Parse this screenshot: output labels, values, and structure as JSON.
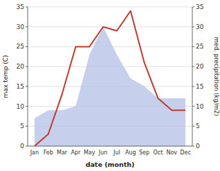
{
  "chart_data": {
    "type": "line",
    "categories": [
      "Jan",
      "Feb",
      "Mar",
      "Apr",
      "May",
      "Jun",
      "Jul",
      "Aug",
      "Sep",
      "Oct",
      "Nov",
      "Dec"
    ],
    "series": [
      {
        "type": "area",
        "axis": "y2",
        "color": "#b8c4e8",
        "values": [
          7,
          9,
          9,
          10,
          23,
          30,
          23,
          17,
          15,
          12,
          12,
          12
        ]
      },
      {
        "type": "line",
        "color": "#c0392b",
        "values": [
          0,
          3,
          13,
          25,
          25,
          30,
          29,
          34,
          21,
          12,
          9,
          9
        ]
      }
    ],
    "xlabel": "date (month)",
    "ylabel": "max temp (C)",
    "y2label": "med. precipitation (kg/m2)",
    "ylim": [
      0,
      35
    ],
    "yticks": [
      0,
      5,
      10,
      15,
      20,
      25,
      30,
      35
    ],
    "y2lim": [
      0,
      35
    ],
    "y2ticks": [
      0,
      5,
      10,
      15,
      20,
      25,
      30,
      35
    ],
    "grid": true
  }
}
